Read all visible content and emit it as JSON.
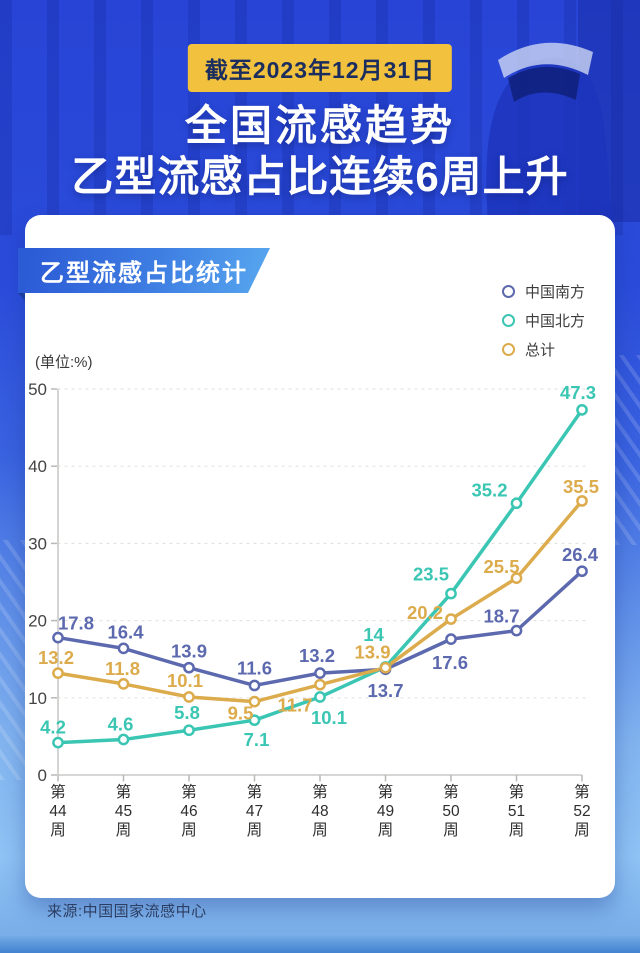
{
  "page": {
    "badge": "截至2023年12月31日",
    "title": "全国流感趋势",
    "subtitle": "乙型流感占比连续6周上升",
    "source": "来源:中国国家流感中心",
    "colors": {
      "badge_bg": "#F2C23E",
      "badge_text": "#1B2D5E",
      "bg_top": "#2744D6",
      "bg_bottom": "#8FC3F4",
      "card_bg": "#FFFFFF",
      "ribbon_blue": "#2C5BD6"
    }
  },
  "card": {
    "ribbon_title": "乙型流感占比统计",
    "unit_label": "(单位:%)"
  },
  "chart_data": {
    "type": "line",
    "title": "乙型流感占比统计",
    "unit": "%",
    "categories": [
      "第44周",
      "第45周",
      "第46周",
      "第47周",
      "第48周",
      "第49周",
      "第50周",
      "第51周",
      "第52周"
    ],
    "ylim": [
      0,
      50
    ],
    "yticks": [
      0,
      10,
      20,
      30,
      40,
      50
    ],
    "grid": "horizontal-dashed",
    "legend_position": "top-right",
    "marker": "open-circle",
    "series": [
      {
        "key": "south",
        "name": "中国南方",
        "color": "#5C69AE",
        "values": [
          17.8,
          16.4,
          13.9,
          11.6,
          13.2,
          13.7,
          17.6,
          18.7,
          26.4
        ],
        "label_offsets": [
          [
            18,
            -14
          ],
          [
            2,
            -16
          ],
          [
            0,
            -16
          ],
          [
            0,
            -17
          ],
          [
            -3,
            -17
          ],
          [
            0,
            22
          ],
          [
            -1,
            24
          ],
          [
            -15,
            -14
          ],
          [
            -2,
            -16
          ]
        ]
      },
      {
        "key": "north",
        "name": "中国北方",
        "color": "#3AC6B3",
        "values": [
          4.2,
          4.6,
          5.8,
          7.1,
          10.1,
          14,
          23.5,
          35.2,
          47.3
        ],
        "label_offsets": [
          [
            -5,
            -15
          ],
          [
            -3,
            -15
          ],
          [
            -2,
            -17
          ],
          [
            2,
            20
          ],
          [
            9,
            21
          ],
          [
            -12,
            -32
          ],
          [
            -20,
            -19
          ],
          [
            -27,
            -13
          ],
          [
            -4,
            -17
          ]
        ]
      },
      {
        "key": "total",
        "name": "总计",
        "color": "#DCAB4C",
        "values": [
          13.2,
          11.8,
          10.1,
          9.5,
          11.7,
          13.9,
          20.2,
          25.5,
          35.5
        ],
        "label_offsets": [
          [
            -2,
            -15
          ],
          [
            -1,
            -15
          ],
          [
            -4,
            -16
          ],
          [
            -14,
            12
          ],
          [
            -25,
            21
          ],
          [
            -13,
            -15
          ],
          [
            -26,
            -6
          ],
          [
            -15,
            -11
          ],
          [
            -1,
            -14
          ]
        ]
      }
    ]
  }
}
